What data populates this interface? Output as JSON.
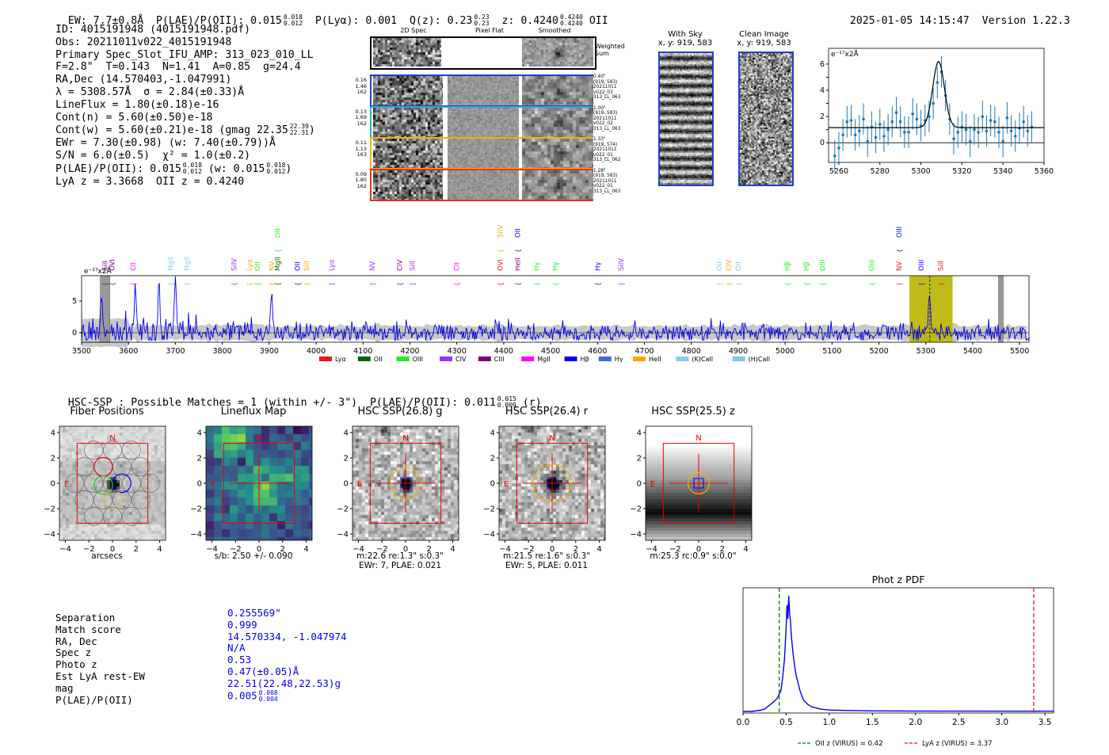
{
  "header": {
    "left": "EW: 7.7±0.8Å  P(LAE)/P(OII): 0.015",
    "left_sup": "0.018",
    "left_sub": "0.012",
    "plya": "P(Lyα): 0.001",
    "qz": "Q(z): 0.23",
    "qz_sup": "0.23",
    "qz_sub": "0.23",
    "z": "z: 0.4240",
    "z_sup": "0.4240",
    "z_sub": "0.4240",
    "z_line": "OII",
    "timestamp": "2025-01-05 14:15:47",
    "version": "Version 1.22.3"
  },
  "info": {
    "id": "ID: 4015191948 (4015191948.pdf)",
    "obs": "Obs: 20211011v022_4015191948",
    "primary": "Primary Spec_Slot_IFU_AMP: 313_023_010_LL",
    "params": "F=2.8\"  T=0.143  N=1.41  A=0.85  g=24.4",
    "radec": "RA,Dec (14.570403,-1.047991)",
    "lambda": "λ = 5308.57Å  σ = 2.84(±0.33)Å",
    "lineflux": "LineFlux = 1.80(±0.18)e-16",
    "contn": "Cont(n) = 5.60(±0.50)e-18",
    "contw": "Cont(w) = 5.60(±0.21)e-18 (gmag 22.35",
    "contw_sup": "22.39",
    "contw_sub": "22.31",
    "ewr": "EWr = 7.30(±0.98) (w: 7.40(±0.79))Å",
    "sn": "S/N = 6.0(±0.5)  χ² = 1.0(±0.2)",
    "plae": "P(LAE)/P(OII): 0.015",
    "plae_sup": "0.018",
    "plae_sub": "0.012",
    "plae_w": "(w: 0.015",
    "plae_w_sup": "0.018",
    "plae_w_sub": "0.012",
    "lyaz": "LyA z = 3.3668  OII z = 0.4240"
  },
  "cutouts": {
    "col_2d": "2D Spec",
    "col_flat": "Pixel Flat",
    "col_smooth": "Smoothed",
    "weighted": "Weighted Sum",
    "rows": [
      {
        "left": [
          "0.16",
          "1.46",
          "162"
        ],
        "right": [
          "0.40\"",
          "(919, 583)",
          "20211011",
          "v022_03",
          "313_LL_063"
        ],
        "color": "#1f3fd0"
      },
      {
        "left": [
          "0.13",
          "1.69",
          "162"
        ],
        "right": [
          "1.00\"",
          "(919, 583)",
          "20211011",
          "v022_02",
          "313_LL_063"
        ],
        "color": "#21b3c7"
      },
      {
        "left": [
          "0.11",
          "1.13",
          "163"
        ],
        "right": [
          "1.33\"",
          "(919, 574)",
          "20211011",
          "v022_01",
          "313_LL_062"
        ],
        "color": "#f2b400"
      },
      {
        "left": [
          "0.09",
          "1.80",
          "162"
        ],
        "right": [
          "1.28\"",
          "(919, 583)",
          "20211011",
          "v022_01",
          "313_LL_063"
        ],
        "color": "#e63020"
      }
    ]
  },
  "sky": {
    "with_sky_title": "With Sky",
    "with_sky_xy": "x, y: 919, 583",
    "clean_title": "Clean Image",
    "clean_xy": "x, y: 919, 583"
  },
  "chart_data": [
    {
      "type": "line",
      "id": "line-fit",
      "unit_label": "e⁻¹⁷x2Å",
      "x": [
        5258,
        5260,
        5262,
        5264,
        5266,
        5268,
        5270,
        5272,
        5274,
        5276,
        5278,
        5280,
        5282,
        5284,
        5286,
        5288,
        5290,
        5292,
        5294,
        5296,
        5298,
        5300,
        5302,
        5304,
        5306,
        5308,
        5310,
        5312,
        5314,
        5316,
        5318,
        5320,
        5322,
        5324,
        5326,
        5328,
        5330,
        5332,
        5334,
        5336,
        5338,
        5340,
        5342,
        5344,
        5346,
        5348,
        5350,
        5352,
        5354
      ],
      "values": [
        -1.0,
        -0.4,
        0.6,
        1.6,
        1.7,
        0.6,
        0.9,
        1.8,
        0.1,
        1.2,
        0.4,
        1.4,
        0.5,
        1.0,
        1.6,
        2.3,
        1.6,
        0.8,
        0.8,
        2.2,
        1.8,
        1.3,
        1.7,
        2.0,
        3.0,
        4.6,
        5.4,
        3.6,
        1.8,
        0.3,
        0.8,
        1.2,
        1.0,
        0.1,
        1.0,
        0.8,
        2.0,
        0.9,
        1.7,
        1.6,
        0.8,
        0.1,
        1.9,
        0.9,
        0.5,
        1.1,
        1.6,
        0.9,
        1.2
      ],
      "errors": 1.2,
      "fit_continuum": 1.15,
      "fit_peak": 6.2,
      "fit_center": 5308.6,
      "fit_sigma": 2.84,
      "xlim": [
        5255,
        5360
      ],
      "ylim": [
        -1.5,
        7.2
      ],
      "xticks": [
        5260,
        5280,
        5300,
        5320,
        5340,
        5360
      ],
      "yticks": [
        0,
        1,
        2,
        3,
        4,
        5,
        6
      ],
      "ytick_labels": {
        "0": "0",
        "2": "2",
        "4": "4",
        "6": "6"
      }
    },
    {
      "type": "line",
      "id": "full-spectrum",
      "unit_label": "e⁻¹⁷x2Å",
      "xlim": [
        3500,
        5520
      ],
      "ylim": [
        -1.5,
        9
      ],
      "xticks": [
        3500,
        3600,
        3700,
        3800,
        3900,
        4000,
        4100,
        4200,
        4300,
        4400,
        4500,
        4600,
        4700,
        4800,
        4900,
        5000,
        5100,
        5200,
        5300,
        5400,
        5500
      ],
      "yticks": [
        0,
        5
      ],
      "highlight_range": [
        5265,
        5357
      ],
      "highlight_color": "#b8b400",
      "gray_bands": [
        [
          3540,
          3560
        ],
        [
          5455,
          5465
        ]
      ],
      "line_marker": 5308.6,
      "seed": 7,
      "peaks": [
        {
          "x": 3542,
          "y": 7.2
        },
        {
          "x": 3615,
          "y": 7.5
        },
        {
          "x": 3665,
          "y": 7.8
        },
        {
          "x": 3700,
          "y": 8.8
        },
        {
          "x": 3905,
          "y": 6.8
        },
        {
          "x": 5308,
          "y": 6.3
        }
      ],
      "legend": [
        {
          "label": "Lyα",
          "color": "#e41a1c"
        },
        {
          "label": "OII",
          "color": "#006400"
        },
        {
          "label": "OIII",
          "color": "#22ee22"
        },
        {
          "label": "CIV",
          "color": "#9b30ff"
        },
        {
          "label": "CIII",
          "color": "#800080"
        },
        {
          "label": "MgII",
          "color": "#ff00ff"
        },
        {
          "label": "Hβ",
          "color": "#0000ff"
        },
        {
          "label": "Hγ",
          "color": "#4169e1"
        },
        {
          "label": "HeII",
          "color": "#ffa500"
        },
        {
          "label": "(K)CaII",
          "color": "#87ceeb"
        },
        {
          "label": "(H)CaII",
          "color": "#7ec8e3"
        }
      ],
      "line_labels": [
        {
          "x": 3550,
          "label": "SiII",
          "color": "#800080",
          "row": 0
        },
        {
          "x": 3565,
          "label": "OVI",
          "color": "#800080",
          "row": 0
        },
        {
          "x": 3610,
          "label": "CII",
          "color": "#ff00ff",
          "row": 0
        },
        {
          "x": 3690,
          "label": "MgII",
          "color": "#87ceeb",
          "row": 0
        },
        {
          "x": 3725,
          "label": "MgII",
          "color": "#87ceeb",
          "row": 0
        },
        {
          "x": 3825,
          "label": "SiIV",
          "color": "#9b30ff",
          "row": 0
        },
        {
          "x": 3858,
          "label": "Lyα",
          "color": "#ffa500",
          "row": 0
        },
        {
          "x": 3875,
          "label": "OII",
          "color": "#22ee22",
          "row": 0
        },
        {
          "x": 3905,
          "label": "NV",
          "color": "#ffa500",
          "row": 0
        },
        {
          "x": 3918,
          "label": "MgII",
          "color": "#006400",
          "row": 0
        },
        {
          "x": 3918,
          "label": "OII",
          "color": "#22ee22",
          "row": 1
        },
        {
          "x": 3960,
          "label": "OII",
          "color": "#0000ff",
          "row": 0
        },
        {
          "x": 3980,
          "label": "SiII",
          "color": "#ffa500",
          "row": 0
        },
        {
          "x": 4033,
          "label": "Lyα",
          "color": "#9b30ff",
          "row": 0
        },
        {
          "x": 4120,
          "label": "NV",
          "color": "#9b30ff",
          "row": 0
        },
        {
          "x": 4178,
          "label": "CIV",
          "color": "#800080",
          "row": 0
        },
        {
          "x": 4205,
          "label": "SiII",
          "color": "#9b30ff",
          "row": 0
        },
        {
          "x": 4300,
          "label": "CII",
          "color": "#ff00ff",
          "row": 0
        },
        {
          "x": 4393,
          "label": "OVI",
          "color": "#e41a1c",
          "row": 0
        },
        {
          "x": 4393,
          "label": "SiIV",
          "color": "#ffa500",
          "row": 1
        },
        {
          "x": 4430,
          "label": "HeII",
          "color": "#800080",
          "row": 0
        },
        {
          "x": 4430,
          "label": "OII",
          "color": "#0000ff",
          "row": 1
        },
        {
          "x": 4470,
          "label": "Hγ",
          "color": "#22ee22",
          "row": 0
        },
        {
          "x": 4510,
          "label": "Hγ",
          "color": "#22ee22",
          "row": 0
        },
        {
          "x": 4600,
          "label": "Hγ",
          "color": "#0000ff",
          "row": 0
        },
        {
          "x": 4650,
          "label": "SiIV",
          "color": "#9b30ff",
          "row": 0
        },
        {
          "x": 4860,
          "label": "OII",
          "color": "#87ceeb",
          "row": 0
        },
        {
          "x": 4880,
          "label": "CIV",
          "color": "#ffa500",
          "row": 0
        },
        {
          "x": 4900,
          "label": "OII",
          "color": "#87ceeb",
          "row": 0
        },
        {
          "x": 5005,
          "label": "Hβ",
          "color": "#22ee22",
          "row": 0
        },
        {
          "x": 5045,
          "label": "Hβ",
          "color": "#22ee22",
          "row": 0
        },
        {
          "x": 5080,
          "label": "OIII",
          "color": "#22ee22",
          "row": 0
        },
        {
          "x": 5185,
          "label": "OIII",
          "color": "#22ee22",
          "row": 0
        },
        {
          "x": 5243,
          "label": "NV",
          "color": "#e41a1c",
          "row": 0
        },
        {
          "x": 5243,
          "label": "OIII",
          "color": "#0000ff",
          "row": 1
        },
        {
          "x": 5290,
          "label": "OIII",
          "color": "#0000ff",
          "row": 0
        },
        {
          "x": 5332,
          "label": "SiII",
          "color": "#e41a1c",
          "row": 0
        }
      ]
    },
    {
      "type": "line",
      "id": "photz-pdf",
      "title": "Phot z PDF",
      "xlim": [
        0,
        3.6
      ],
      "xticks": [
        0.0,
        0.5,
        1.0,
        1.5,
        2.0,
        2.5,
        3.0,
        3.5
      ],
      "xtick_labels": [
        "0.0",
        "0.5",
        "1.0",
        "1.5",
        "2.0",
        "2.5",
        "3.0",
        "3.5"
      ],
      "x": [
        0.0,
        0.1,
        0.2,
        0.25,
        0.3,
        0.35,
        0.38,
        0.4,
        0.42,
        0.44,
        0.46,
        0.48,
        0.5,
        0.51,
        0.52,
        0.53,
        0.54,
        0.55,
        0.56,
        0.58,
        0.6,
        0.62,
        0.64,
        0.66,
        0.68,
        0.7,
        0.75,
        0.8,
        0.9,
        1.0,
        1.2,
        1.5,
        2.0,
        3.6
      ],
      "values": [
        0.0,
        0.0,
        0.01,
        0.02,
        0.05,
        0.08,
        0.1,
        0.12,
        0.15,
        0.18,
        0.3,
        0.45,
        0.72,
        0.92,
        0.8,
        1.0,
        0.85,
        0.78,
        0.65,
        0.5,
        0.38,
        0.3,
        0.24,
        0.18,
        0.14,
        0.1,
        0.06,
        0.04,
        0.02,
        0.012,
        0.008,
        0.005,
        0.003,
        0.002
      ],
      "oii_z": 0.42,
      "lya_z": 3.37,
      "legend": [
        {
          "label": "OII z (VIRUS) = 0.42",
          "color": "#008000"
        },
        {
          "label": "LyA z (VIRUS) = 3.37",
          "color": "#e41a1c"
        }
      ]
    }
  ],
  "hsc": {
    "header": "HSC-SSP : Possible Matches = 1 (within +/- 3\")  P(LAE)/P(OII): 0.011",
    "header_sup": "0.015",
    "header_sub": "0.009",
    "header_band": "(r)",
    "panels": [
      {
        "title": "Fiber Positions",
        "caption1": "arcsecs",
        "caption2": ""
      },
      {
        "title": "Lineflux Map",
        "caption1": "s/b: 2.50 +/- 0.090",
        "caption2": ""
      },
      {
        "title": "HSC SSP(26.8) g",
        "caption1": "m:22.6  re:1.3\"  s:0.3\"",
        "caption2": "EWr: 7, PLAE: 0.021"
      },
      {
        "title": "HSC SSP(26.4) r",
        "caption1": "m:21.5  re:1.6\"  s:0.3\"",
        "caption2": "EWr: 5, PLAE: 0.011"
      },
      {
        "title": "HSC SSP(25.5) z",
        "caption1": "m:25.3 rc:0.9\"  s:0.0\"",
        "caption2": ""
      }
    ],
    "axis_ticks": [
      "4",
      "2",
      "0",
      "−2",
      "−4"
    ],
    "x_ticks": [
      "−4",
      "−2",
      "0",
      "2",
      "4"
    ],
    "north": "N",
    "east": "E"
  },
  "match": {
    "labels": [
      "Separation",
      "Match score",
      "RA, Dec",
      "Spec z",
      "Photo z",
      "Est LyA rest-EW",
      "mag",
      "P(LAE)/P(OII)"
    ],
    "values": [
      "0.255569\"",
      "0.999",
      "14.570334, -1.047974",
      "N/A",
      "0.53",
      "0.47(±0.05)Å",
      "22.51(22.48,22.53)g",
      "0.005"
    ],
    "plae_sup": "0.008",
    "plae_sub": "0.004"
  }
}
